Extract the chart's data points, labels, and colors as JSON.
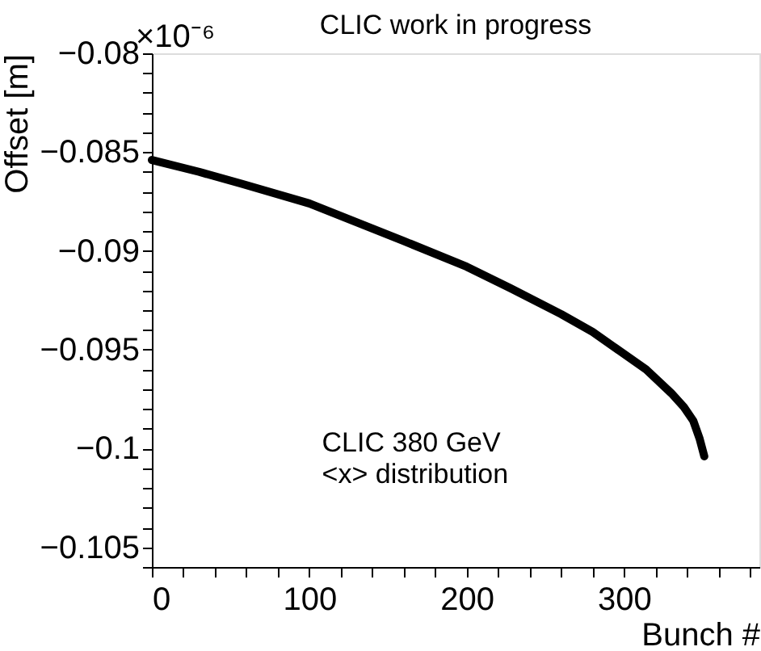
{
  "chart_data": {
    "type": "line",
    "title": "CLIC work in progress",
    "xlabel": "Bunch #",
    "ylabel": "Offset [m]",
    "annotations": [
      "×10⁻⁶",
      "CLIC 380 GeV",
      "<x> distribution"
    ],
    "x": [
      0,
      30,
      57,
      100,
      160,
      200,
      228,
      260,
      280,
      314,
      330,
      338,
      344,
      348,
      351
    ],
    "series": [
      {
        "color": "#000000",
        "values": [
          -0.0854,
          -0.086,
          -0.0866,
          -0.0876,
          -0.0895,
          -0.0908,
          -0.0919,
          -0.0932,
          -0.0941,
          -0.096,
          -0.0972,
          -0.0979,
          -0.0986,
          -0.0995,
          -0.1004
        ]
      }
    ],
    "xlim": [
      0,
      386
    ],
    "ylim": [
      -0.106,
      -0.08
    ],
    "xticks": [
      0,
      {
        "value": 20,
        "label": null
      },
      {
        "value": 40,
        "label": null
      },
      {
        "value": 60,
        "label": null
      },
      {
        "value": 80,
        "label": null
      },
      100,
      {
        "value": 120,
        "label": null
      },
      {
        "value": 140,
        "label": null
      },
      {
        "value": 160,
        "label": null
      },
      {
        "value": 180,
        "label": null
      },
      200,
      {
        "value": 220,
        "label": null
      },
      {
        "value": 240,
        "label": null
      },
      {
        "value": 260,
        "label": null
      },
      {
        "value": 280,
        "label": null
      },
      300,
      {
        "value": 320,
        "label": null
      },
      {
        "value": 340,
        "label": null
      },
      {
        "value": 360,
        "label": null
      },
      {
        "value": 380,
        "label": null
      }
    ],
    "yticks": [
      {
        "value": -0.106,
        "label": null
      },
      {
        "value": -0.105,
        "label": "−0.105"
      },
      {
        "value": -0.104,
        "label": null
      },
      {
        "value": -0.103,
        "label": null
      },
      {
        "value": -0.102,
        "label": null
      },
      {
        "value": -0.101,
        "label": null
      },
      {
        "value": -0.1,
        "label": "−0.1"
      },
      {
        "value": -0.099,
        "label": null
      },
      {
        "value": -0.098,
        "label": null
      },
      {
        "value": -0.097,
        "label": null
      },
      {
        "value": -0.096,
        "label": null
      },
      {
        "value": -0.095,
        "label": "−0.095"
      },
      {
        "value": -0.094,
        "label": null
      },
      {
        "value": -0.093,
        "label": null
      },
      {
        "value": -0.092,
        "label": null
      },
      {
        "value": -0.091,
        "label": null
      },
      {
        "value": -0.09,
        "label": "−0.09"
      },
      {
        "value": -0.089,
        "label": null
      },
      {
        "value": -0.088,
        "label": null
      },
      {
        "value": -0.087,
        "label": null
      },
      {
        "value": -0.086,
        "label": null
      },
      {
        "value": -0.085,
        "label": "−0.085"
      },
      {
        "value": -0.084,
        "label": null
      },
      {
        "value": -0.083,
        "label": null
      },
      {
        "value": -0.082,
        "label": null
      },
      {
        "value": -0.081,
        "label": null
      },
      {
        "value": -0.08,
        "label": "−0.08"
      }
    ],
    "grid": false,
    "marker": "none",
    "line_style": "solid"
  }
}
